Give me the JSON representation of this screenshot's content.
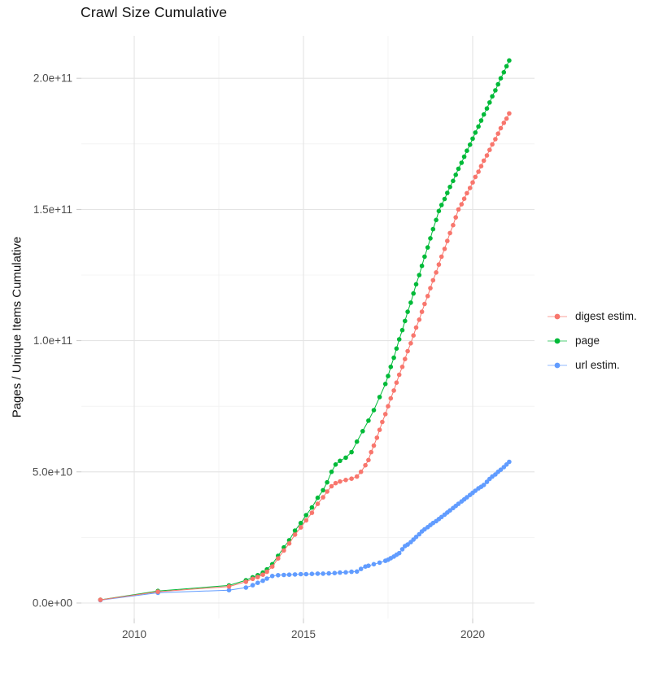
{
  "chart_data": {
    "type": "line",
    "title": "Crawl Size Cumulative",
    "xlabel": "",
    "ylabel": "Pages / Unique Items Cumulative",
    "value_unit": "billions (1e9) of pages / unique items",
    "grid": true,
    "legend_position": "right",
    "xlim": [
      2008.4,
      2021.8
    ],
    "ylim": [
      "0.0e+00",
      "2.05e+11"
    ],
    "x_ticks": [
      {
        "v": 2010,
        "label": "2010"
      },
      {
        "v": 2015,
        "label": "2015"
      },
      {
        "v": 2020,
        "label": "2020"
      }
    ],
    "x_minor": [
      2012.5,
      2017.5
    ],
    "y_ticks": [
      {
        "v": 0,
        "label": "0.0e+00"
      },
      {
        "v": 50,
        "label": "5.0e+10"
      },
      {
        "v": 100,
        "label": "1.0e+11"
      },
      {
        "v": 150,
        "label": "1.5e+11"
      },
      {
        "v": 200,
        "label": "2.0e+11"
      }
    ],
    "y_minor": [
      25,
      75,
      125,
      175
    ],
    "draw_order": [
      1,
      2,
      0
    ],
    "series": [
      {
        "name": "digest estim.",
        "color": "#F8766D",
        "points": [
          [
            2009.0,
            1.2
          ],
          [
            2010.7,
            4.3
          ],
          [
            2012.8,
            6.3
          ],
          [
            2013.3,
            8.1
          ],
          [
            2013.5,
            9.2
          ],
          [
            2013.65,
            9.9
          ],
          [
            2013.8,
            10.8
          ],
          [
            2013.92,
            11.9
          ],
          [
            2014.08,
            13.9
          ],
          [
            2014.25,
            17.0
          ],
          [
            2014.42,
            20.0
          ],
          [
            2014.58,
            22.7
          ],
          [
            2014.75,
            26.1
          ],
          [
            2014.92,
            28.8
          ],
          [
            2015.08,
            31.5
          ],
          [
            2015.25,
            34.4
          ],
          [
            2015.42,
            37.8
          ],
          [
            2015.58,
            40.3
          ],
          [
            2015.7,
            42.5
          ],
          [
            2015.83,
            44.5
          ],
          [
            2015.95,
            45.7
          ],
          [
            2016.08,
            46.3
          ],
          [
            2016.25,
            46.9
          ],
          [
            2016.42,
            47.4
          ],
          [
            2016.58,
            48.2
          ],
          [
            2016.7,
            50.0
          ],
          [
            2016.83,
            52.5
          ],
          [
            2016.92,
            54.5
          ],
          [
            2017.0,
            57.5
          ],
          [
            2017.08,
            60.0
          ],
          [
            2017.17,
            63.0
          ],
          [
            2017.25,
            66.0
          ],
          [
            2017.33,
            69.0
          ],
          [
            2017.42,
            72.0
          ],
          [
            2017.5,
            75.0
          ],
          [
            2017.58,
            78.0
          ],
          [
            2017.67,
            81.0
          ],
          [
            2017.75,
            84.0
          ],
          [
            2017.83,
            87.0
          ],
          [
            2017.92,
            90.0
          ],
          [
            2018.0,
            93.0
          ],
          [
            2018.08,
            96.0
          ],
          [
            2018.17,
            99.0
          ],
          [
            2018.25,
            102.0
          ],
          [
            2018.33,
            105.0
          ],
          [
            2018.42,
            108.0
          ],
          [
            2018.5,
            111.0
          ],
          [
            2018.58,
            114.0
          ],
          [
            2018.67,
            117.0
          ],
          [
            2018.75,
            120.0
          ],
          [
            2018.83,
            123.0
          ],
          [
            2018.92,
            126.0
          ],
          [
            2019.0,
            129.0
          ],
          [
            2019.08,
            132.0
          ],
          [
            2019.17,
            135.0
          ],
          [
            2019.25,
            138.0
          ],
          [
            2019.33,
            141.0
          ],
          [
            2019.42,
            144.0
          ],
          [
            2019.5,
            147.0
          ],
          [
            2019.58,
            150.0
          ],
          [
            2019.67,
            152.0
          ],
          [
            2019.75,
            154.1
          ],
          [
            2019.83,
            156.2
          ],
          [
            2019.92,
            158.2
          ],
          [
            2020.0,
            160.3
          ],
          [
            2020.08,
            162.4
          ],
          [
            2020.17,
            164.4
          ],
          [
            2020.25,
            166.5
          ],
          [
            2020.33,
            168.6
          ],
          [
            2020.42,
            170.6
          ],
          [
            2020.5,
            172.7
          ],
          [
            2020.58,
            174.8
          ],
          [
            2020.67,
            176.8
          ],
          [
            2020.75,
            178.9
          ],
          [
            2020.83,
            181.0
          ],
          [
            2020.92,
            183.0
          ],
          [
            2021.0,
            184.6
          ],
          [
            2021.08,
            186.6
          ]
        ]
      },
      {
        "name": "page",
        "color": "#00BA38",
        "points": [
          [
            2009.0,
            1.2
          ],
          [
            2010.7,
            4.6
          ],
          [
            2012.8,
            6.7
          ],
          [
            2013.3,
            8.7
          ],
          [
            2013.5,
            9.8
          ],
          [
            2013.65,
            10.6
          ],
          [
            2013.8,
            11.6
          ],
          [
            2013.92,
            12.8
          ],
          [
            2014.08,
            14.8
          ],
          [
            2014.25,
            18.0
          ],
          [
            2014.42,
            21.2
          ],
          [
            2014.58,
            23.9
          ],
          [
            2014.75,
            27.6
          ],
          [
            2014.92,
            30.5
          ],
          [
            2015.08,
            33.5
          ],
          [
            2015.25,
            36.4
          ],
          [
            2015.42,
            40.1
          ],
          [
            2015.58,
            43.0
          ],
          [
            2015.7,
            46.0
          ],
          [
            2015.83,
            50.0
          ],
          [
            2015.95,
            52.8
          ],
          [
            2016.08,
            54.2
          ],
          [
            2016.25,
            55.4
          ],
          [
            2016.42,
            57.5
          ],
          [
            2016.58,
            61.5
          ],
          [
            2016.75,
            65.5
          ],
          [
            2016.92,
            69.5
          ],
          [
            2017.08,
            73.5
          ],
          [
            2017.25,
            78.5
          ],
          [
            2017.42,
            83.5
          ],
          [
            2017.5,
            86.5
          ],
          [
            2017.58,
            90.0
          ],
          [
            2017.67,
            93.5
          ],
          [
            2017.75,
            97.0
          ],
          [
            2017.83,
            100.5
          ],
          [
            2017.92,
            104.0
          ],
          [
            2018.0,
            107.5
          ],
          [
            2018.08,
            111.0
          ],
          [
            2018.17,
            114.5
          ],
          [
            2018.25,
            118.0
          ],
          [
            2018.33,
            121.5
          ],
          [
            2018.42,
            125.0
          ],
          [
            2018.5,
            128.5
          ],
          [
            2018.58,
            132.0
          ],
          [
            2018.67,
            135.5
          ],
          [
            2018.75,
            139.0
          ],
          [
            2018.83,
            142.5
          ],
          [
            2018.92,
            146.0
          ],
          [
            2019.0,
            149.4
          ],
          [
            2019.08,
            151.7
          ],
          [
            2019.17,
            154.0
          ],
          [
            2019.25,
            156.3
          ],
          [
            2019.33,
            158.6
          ],
          [
            2019.42,
            160.9
          ],
          [
            2019.5,
            163.2
          ],
          [
            2019.58,
            165.5
          ],
          [
            2019.67,
            167.8
          ],
          [
            2019.75,
            170.1
          ],
          [
            2019.83,
            172.4
          ],
          [
            2019.92,
            174.7
          ],
          [
            2020.0,
            177.0
          ],
          [
            2020.08,
            179.3
          ],
          [
            2020.17,
            181.6
          ],
          [
            2020.25,
            183.9
          ],
          [
            2020.33,
            186.2
          ],
          [
            2020.42,
            188.5
          ],
          [
            2020.5,
            190.8
          ],
          [
            2020.58,
            193.1
          ],
          [
            2020.67,
            195.4
          ],
          [
            2020.75,
            197.7
          ],
          [
            2020.83,
            200.0
          ],
          [
            2020.92,
            202.3
          ],
          [
            2021.0,
            204.6
          ],
          [
            2021.08,
            206.8
          ]
        ]
      },
      {
        "name": "url estim.",
        "color": "#619CFF",
        "points": [
          [
            2009.0,
            1.1
          ],
          [
            2010.7,
            3.9
          ],
          [
            2012.8,
            4.9
          ],
          [
            2013.3,
            5.9
          ],
          [
            2013.5,
            6.8
          ],
          [
            2013.65,
            7.7
          ],
          [
            2013.8,
            8.5
          ],
          [
            2013.92,
            9.3
          ],
          [
            2014.08,
            10.3
          ],
          [
            2014.25,
            10.6
          ],
          [
            2014.42,
            10.7
          ],
          [
            2014.58,
            10.8
          ],
          [
            2014.75,
            10.9
          ],
          [
            2014.92,
            11.0
          ],
          [
            2015.08,
            11.0
          ],
          [
            2015.25,
            11.1
          ],
          [
            2015.42,
            11.2
          ],
          [
            2015.58,
            11.2
          ],
          [
            2015.75,
            11.3
          ],
          [
            2015.92,
            11.4
          ],
          [
            2016.08,
            11.6
          ],
          [
            2016.25,
            11.7
          ],
          [
            2016.42,
            11.9
          ],
          [
            2016.58,
            12.0
          ],
          [
            2016.7,
            13.0
          ],
          [
            2016.83,
            13.9
          ],
          [
            2016.92,
            14.2
          ],
          [
            2017.08,
            14.8
          ],
          [
            2017.25,
            15.4
          ],
          [
            2017.42,
            16.1
          ],
          [
            2017.5,
            16.5
          ],
          [
            2017.58,
            17.1
          ],
          [
            2017.67,
            17.7
          ],
          [
            2017.75,
            18.4
          ],
          [
            2017.83,
            19.0
          ],
          [
            2017.92,
            20.5
          ],
          [
            2018.0,
            21.7
          ],
          [
            2018.08,
            22.3
          ],
          [
            2018.17,
            23.2
          ],
          [
            2018.25,
            24.2
          ],
          [
            2018.33,
            25.2
          ],
          [
            2018.42,
            26.2
          ],
          [
            2018.5,
            27.3
          ],
          [
            2018.58,
            28.1
          ],
          [
            2018.67,
            28.9
          ],
          [
            2018.75,
            29.7
          ],
          [
            2018.83,
            30.5
          ],
          [
            2018.92,
            31.2
          ],
          [
            2019.0,
            32.0
          ],
          [
            2019.08,
            32.8
          ],
          [
            2019.17,
            33.7
          ],
          [
            2019.25,
            34.5
          ],
          [
            2019.33,
            35.3
          ],
          [
            2019.42,
            36.2
          ],
          [
            2019.5,
            37.0
          ],
          [
            2019.58,
            37.8
          ],
          [
            2019.67,
            38.7
          ],
          [
            2019.75,
            39.5
          ],
          [
            2019.83,
            40.3
          ],
          [
            2019.92,
            41.2
          ],
          [
            2020.0,
            42.0
          ],
          [
            2020.08,
            42.8
          ],
          [
            2020.17,
            43.7
          ],
          [
            2020.25,
            44.3
          ],
          [
            2020.33,
            45.0
          ],
          [
            2020.42,
            46.2
          ],
          [
            2020.5,
            47.3
          ],
          [
            2020.58,
            48.2
          ],
          [
            2020.67,
            49.0
          ],
          [
            2020.75,
            50.0
          ],
          [
            2020.83,
            50.8
          ],
          [
            2020.92,
            51.8
          ],
          [
            2021.0,
            52.8
          ],
          [
            2021.08,
            53.8
          ]
        ]
      }
    ]
  },
  "style": {
    "grid_major_color": "#e4e4e4",
    "grid_minor_color": "#f1f1f1",
    "tick_color": "#c9c9c9",
    "axis_text_color": "#4d4d4d"
  }
}
